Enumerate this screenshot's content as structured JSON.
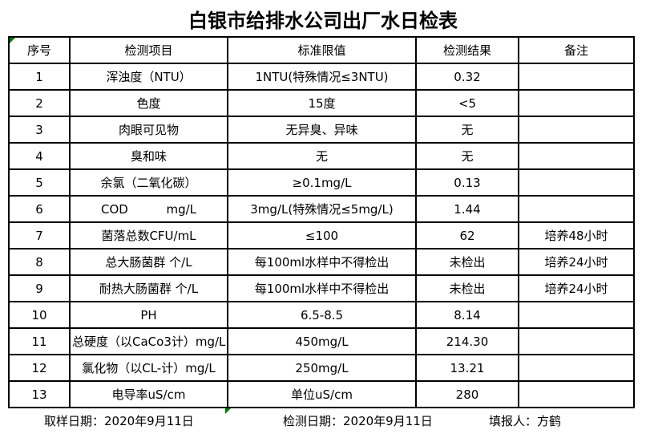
{
  "title": "白银市给排水公司出厂水日检表",
  "colors": {
    "background": "#ffffff",
    "text": "#000000",
    "border": "#000000",
    "cell_marker_green": "#008000"
  },
  "table": {
    "headers": {
      "no": "序号",
      "item": "检测项目",
      "limit": "标准限值",
      "result": "检测结果",
      "note": "备注"
    },
    "rows": [
      {
        "no": "1",
        "item": "浑浊度（NTU）",
        "limit": "1NTU(特殊情况≤3NTU)",
        "result": "0.32",
        "note": ""
      },
      {
        "no": "2",
        "item": "色度",
        "limit": "15度",
        "result": "<5",
        "note": ""
      },
      {
        "no": "3",
        "item": "肉眼可见物",
        "limit": "无异臭、异味",
        "result": "无",
        "note": ""
      },
      {
        "no": "4",
        "item": "臭和味",
        "limit": "无",
        "result": "无",
        "note": ""
      },
      {
        "no": "5",
        "item": "余氯（二氧化碳）",
        "limit": "≥0.1mg/L",
        "result": "0.13",
        "note": ""
      },
      {
        "no": "6",
        "item": "COD          mg/L",
        "limit": "3mg/L(特殊情况≤5mg/L)",
        "result": "1.44",
        "note": ""
      },
      {
        "no": "7",
        "item": "菌落总数CFU/mL",
        "limit": "≤100",
        "result": "62",
        "note": "培养48小时"
      },
      {
        "no": "8",
        "item": "总大肠菌群 个/L",
        "limit": "每100ml水样中不得检出",
        "result": "未检出",
        "note": "培养24小时"
      },
      {
        "no": "9",
        "item": "耐热大肠菌群 个/L",
        "limit": "每100ml水样中不得检出",
        "result": "未检出",
        "note": "培养24小时"
      },
      {
        "no": "10",
        "item": "PH",
        "limit": "6.5-8.5",
        "result": "8.14",
        "note": ""
      },
      {
        "no": "11",
        "item": "总硬度（以CaCo3计）mg/L",
        "limit": "450mg/L",
        "result": "214.30",
        "note": ""
      },
      {
        "no": "12",
        "item": "氯化物（以CL-计）mg/L",
        "limit": "250mg/L",
        "result": "13.21",
        "note": ""
      },
      {
        "no": "13",
        "item": "电导率uS/cm",
        "limit": "单位uS/cm",
        "result": "280",
        "note": ""
      }
    ]
  },
  "footer": {
    "sampling": "取样日期：2020年9月11日",
    "testing": "检测日期：2020年9月11日",
    "reporter": "填报人：方鹤"
  }
}
